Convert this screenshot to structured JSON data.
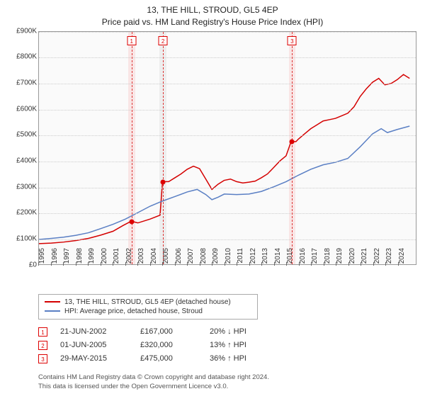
{
  "title": "13, THE HILL, STROUD, GL5 4EP",
  "subtitle": "Price paid vs. HM Land Registry's House Price Index (HPI)",
  "chart": {
    "type": "line",
    "background_color": "#fafafa",
    "grid_color": "#cccccc",
    "border_color": "#999999",
    "ylabel_prefix": "£",
    "ylim": [
      0,
      900
    ],
    "ytick_step": 100,
    "yticks": [
      "£0",
      "£100K",
      "£200K",
      "£300K",
      "£400K",
      "£500K",
      "£600K",
      "£700K",
      "£800K",
      "£900K"
    ],
    "x_years": [
      "1995",
      "1996",
      "1997",
      "1998",
      "1999",
      "2000",
      "2001",
      "2002",
      "2003",
      "2004",
      "2005",
      "2006",
      "2007",
      "2008",
      "2009",
      "2010",
      "2011",
      "2012",
      "2013",
      "2014",
      "2015",
      "2016",
      "2017",
      "2018",
      "2019",
      "2020",
      "2021",
      "2022",
      "2023",
      "2024"
    ],
    "xlim_years": [
      1995,
      2025.5
    ],
    "tick_fontsize": 10,
    "series": [
      {
        "name": "price_paid",
        "label": "13, THE HILL, STROUD, GL5 4EP (detached house)",
        "color": "#d40000",
        "line_width": 1.5,
        "points": [
          [
            1995.0,
            80
          ],
          [
            1996.0,
            82
          ],
          [
            1997.0,
            86
          ],
          [
            1998.0,
            92
          ],
          [
            1999.0,
            100
          ],
          [
            2000.0,
            113
          ],
          [
            2001.0,
            128
          ],
          [
            2001.8,
            150
          ],
          [
            2002.47,
            167
          ],
          [
            2003.0,
            160
          ],
          [
            2004.0,
            175
          ],
          [
            2004.8,
            190
          ],
          [
            2005.0,
            320
          ],
          [
            2005.5,
            320
          ],
          [
            2006.0,
            335
          ],
          [
            2006.5,
            350
          ],
          [
            2007.0,
            368
          ],
          [
            2007.5,
            380
          ],
          [
            2008.0,
            370
          ],
          [
            2008.5,
            330
          ],
          [
            2009.0,
            290
          ],
          [
            2009.5,
            310
          ],
          [
            2010.0,
            325
          ],
          [
            2010.5,
            330
          ],
          [
            2011.0,
            320
          ],
          [
            2011.5,
            315
          ],
          [
            2012.0,
            318
          ],
          [
            2012.5,
            322
          ],
          [
            2013.0,
            335
          ],
          [
            2013.5,
            350
          ],
          [
            2014.0,
            375
          ],
          [
            2014.5,
            400
          ],
          [
            2015.0,
            420
          ],
          [
            2015.41,
            475
          ],
          [
            2015.8,
            475
          ],
          [
            2016.0,
            485
          ],
          [
            2016.5,
            505
          ],
          [
            2017.0,
            525
          ],
          [
            2017.5,
            540
          ],
          [
            2018.0,
            555
          ],
          [
            2018.5,
            560
          ],
          [
            2019.0,
            565
          ],
          [
            2019.5,
            575
          ],
          [
            2020.0,
            585
          ],
          [
            2020.5,
            610
          ],
          [
            2021.0,
            650
          ],
          [
            2021.5,
            680
          ],
          [
            2022.0,
            705
          ],
          [
            2022.5,
            720
          ],
          [
            2023.0,
            695
          ],
          [
            2023.5,
            700
          ],
          [
            2024.0,
            715
          ],
          [
            2024.5,
            735
          ],
          [
            2025.0,
            720
          ]
        ]
      },
      {
        "name": "hpi",
        "label": "HPI: Average price, detached house, Stroud",
        "color": "#5a7fc4",
        "line_width": 1.5,
        "points": [
          [
            1995.0,
            96
          ],
          [
            1996.0,
            100
          ],
          [
            1997.0,
            105
          ],
          [
            1998.0,
            112
          ],
          [
            1999.0,
            122
          ],
          [
            2000.0,
            138
          ],
          [
            2001.0,
            155
          ],
          [
            2002.0,
            175
          ],
          [
            2003.0,
            200
          ],
          [
            2004.0,
            225
          ],
          [
            2005.0,
            245
          ],
          [
            2006.0,
            262
          ],
          [
            2007.0,
            280
          ],
          [
            2007.8,
            290
          ],
          [
            2008.5,
            270
          ],
          [
            2009.0,
            250
          ],
          [
            2009.5,
            260
          ],
          [
            2010.0,
            272
          ],
          [
            2011.0,
            270
          ],
          [
            2012.0,
            272
          ],
          [
            2013.0,
            282
          ],
          [
            2014.0,
            300
          ],
          [
            2015.0,
            320
          ],
          [
            2016.0,
            345
          ],
          [
            2017.0,
            368
          ],
          [
            2018.0,
            385
          ],
          [
            2019.0,
            395
          ],
          [
            2020.0,
            410
          ],
          [
            2021.0,
            455
          ],
          [
            2022.0,
            505
          ],
          [
            2022.7,
            525
          ],
          [
            2023.2,
            510
          ],
          [
            2024.0,
            522
          ],
          [
            2025.0,
            535
          ]
        ]
      }
    ],
    "sale_markers": [
      {
        "n": "1",
        "year": 2002.47,
        "value": 167,
        "band_color": "#f9e6e6"
      },
      {
        "n": "2",
        "year": 2005.0,
        "value": 320,
        "band_color": "#eeeeee"
      },
      {
        "n": "3",
        "year": 2015.41,
        "value": 475,
        "band_color": "#f9e6e6"
      }
    ],
    "marker_band_width_years": 0.55
  },
  "legend": {
    "border_color": "#aaaaaa",
    "items": [
      {
        "color": "#d40000",
        "label": "13, THE HILL, STROUD, GL5 4EP (detached house)"
      },
      {
        "color": "#5a7fc4",
        "label": "HPI: Average price, detached house, Stroud"
      }
    ]
  },
  "sales_table": {
    "rows": [
      {
        "n": "1",
        "date": "21-JUN-2002",
        "price": "£167,000",
        "delta": "20% ↓ HPI"
      },
      {
        "n": "2",
        "date": "01-JUN-2005",
        "price": "£320,000",
        "delta": "13% ↑ HPI"
      },
      {
        "n": "3",
        "date": "29-MAY-2015",
        "price": "£475,000",
        "delta": "36% ↑ HPI"
      }
    ]
  },
  "footer": {
    "line1": "Contains HM Land Registry data © Crown copyright and database right 2024.",
    "line2": "This data is licensed under the Open Government Licence v3.0."
  }
}
